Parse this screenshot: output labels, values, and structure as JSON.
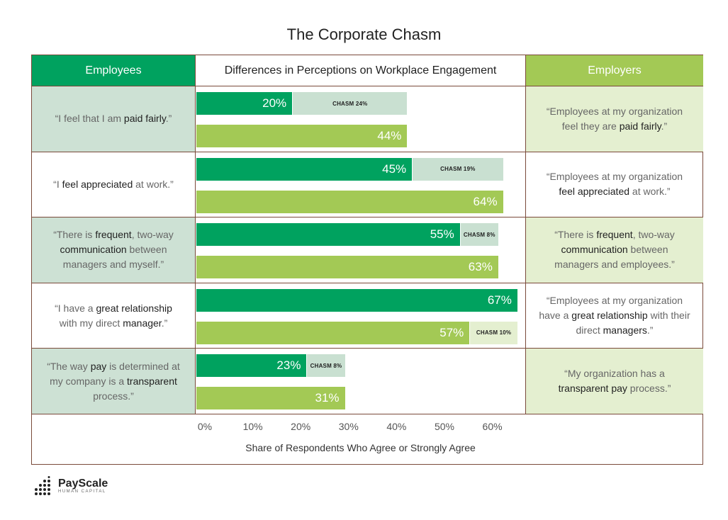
{
  "title": "The Corporate Chasm",
  "headers": {
    "employees": "Employees",
    "middle": "Differences in Perceptions on Workplace Engagement",
    "employers": "Employers"
  },
  "rows": [
    {
      "employee_quote": [
        [
          "“I feel that I am ",
          false
        ],
        [
          "paid fairly",
          true
        ],
        [
          ".”",
          false
        ]
      ],
      "employer_quote": [
        [
          "“Employees at my organization feel they are ",
          false
        ],
        [
          "paid fairly",
          true
        ],
        [
          ".”",
          false
        ]
      ],
      "shade": true
    },
    {
      "employee_quote": [
        [
          "“I ",
          false
        ],
        [
          "feel appreciated",
          true
        ],
        [
          " at work.”",
          false
        ]
      ],
      "employer_quote": [
        [
          "“Employees at my organization ",
          false
        ],
        [
          "feel appreciated",
          true
        ],
        [
          " at work.”",
          false
        ]
      ],
      "shade": false
    },
    {
      "employee_quote": [
        [
          "“There is ",
          false
        ],
        [
          "frequent",
          true
        ],
        [
          ", two-way ",
          false
        ],
        [
          "communication",
          true
        ],
        [
          " between managers and myself.”",
          false
        ]
      ],
      "employer_quote": [
        [
          "“There is ",
          false
        ],
        [
          "frequent",
          true
        ],
        [
          ", two-way ",
          false
        ],
        [
          "communication",
          true
        ],
        [
          " between managers and employees.”",
          false
        ]
      ],
      "shade": true
    },
    {
      "employee_quote": [
        [
          "“I have a ",
          false
        ],
        [
          "great relationship",
          true
        ],
        [
          " with my direct ",
          false
        ],
        [
          "manager",
          true
        ],
        [
          ".”",
          false
        ]
      ],
      "employer_quote": [
        [
          "“Employees at my organization have a ",
          false
        ],
        [
          "great relationship",
          true
        ],
        [
          " with their direct ",
          false
        ],
        [
          "managers",
          true
        ],
        [
          ".”",
          false
        ]
      ],
      "shade": false
    },
    {
      "employee_quote": [
        [
          "“The way ",
          false
        ],
        [
          "pay",
          true
        ],
        [
          " is determined at my company is a ",
          false
        ],
        [
          "transparent",
          true
        ],
        [
          " process.”",
          false
        ]
      ],
      "employer_quote": [
        [
          "“My organization has a ",
          false
        ],
        [
          "transparent pay",
          true
        ],
        [
          " process.”",
          false
        ]
      ],
      "shade": true
    }
  ],
  "chart_data": {
    "type": "bar",
    "orientation": "horizontal",
    "categories": [
      "paid fairly",
      "feel appreciated",
      "frequent communication",
      "great relationship with manager",
      "transparent pay"
    ],
    "series": [
      {
        "name": "Employees",
        "values": [
          20,
          45,
          55,
          67,
          23
        ],
        "labels": [
          "20%",
          "45%",
          "55%",
          "67%",
          "23%"
        ],
        "color": "#00a25f"
      },
      {
        "name": "Employers",
        "values": [
          44,
          64,
          63,
          57,
          31
        ],
        "labels": [
          "44%",
          "64%",
          "63%",
          "57%",
          "31%"
        ],
        "color": "#a3c955"
      }
    ],
    "chasm_labels": [
      "CHASM 24%",
      "CHASM 19%",
      "CHASM 8%",
      "CHASM 10%",
      "CHASM 8%"
    ],
    "xlabel": "Share of Respondents Who Agree or Strongly Agree",
    "ticks": [
      "0%",
      "10%",
      "20%",
      "30%",
      "40%",
      "50%",
      "60%"
    ],
    "tick_values": [
      0,
      10,
      20,
      30,
      40,
      50,
      60
    ],
    "xlim": [
      0,
      68.5
    ],
    "grid": false
  },
  "logo": {
    "name": "PayScale",
    "sub": "HUMAN CAPITAL"
  }
}
